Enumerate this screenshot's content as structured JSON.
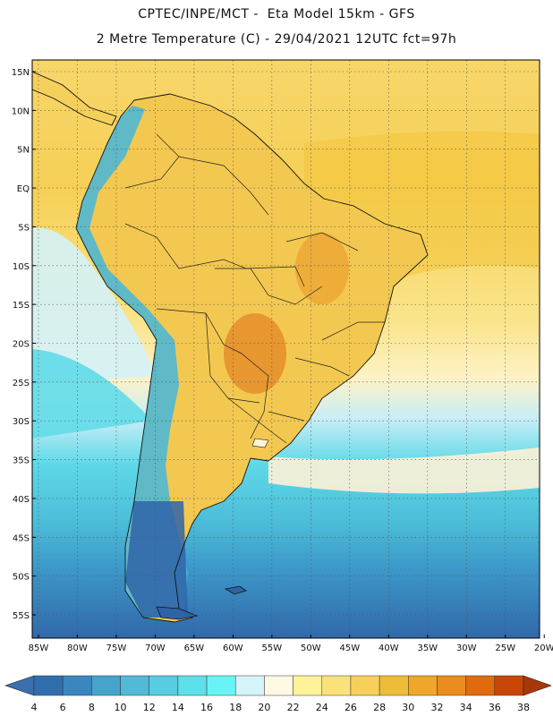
{
  "header": {
    "title_line1": "CPTEC/INPE/MCT -  Eta Model 15km - GFS",
    "title_line2": "2 Metre Temperature (C) - 29/04/2021 12UTC fct=97h"
  },
  "map": {
    "latitude_labels": [
      "15N",
      "10N",
      "5N",
      "EQ",
      "5S",
      "10S",
      "15S",
      "20S",
      "25S",
      "30S",
      "35S",
      "40S",
      "45S",
      "50S",
      "55S"
    ],
    "longitude_labels": [
      "85W",
      "80W",
      "75W",
      "70W",
      "65W",
      "60W",
      "55W",
      "50W",
      "45W",
      "40W",
      "35W",
      "30W",
      "25W",
      "20W"
    ],
    "lat_range": [
      -58,
      16.5
    ],
    "lon_range": [
      -85.8,
      -20.6
    ]
  },
  "legend": {
    "labels": [
      "4",
      "6",
      "8",
      "10",
      "12",
      "14",
      "16",
      "18",
      "20",
      "22",
      "24",
      "26",
      "28",
      "30",
      "32",
      "34",
      "36",
      "38"
    ],
    "colors": [
      "#3a6fb0",
      "#2f6fad",
      "#3a86c0",
      "#46a3cc",
      "#52bad6",
      "#58cce0",
      "#5ee0ea",
      "#68f4f4",
      "#d4f4fa",
      "#fff8e4",
      "#fff39a",
      "#fae27a",
      "#f6d05a",
      "#eebc38",
      "#f0a62a",
      "#ea8c1e",
      "#e06a0e",
      "#c84608",
      "#a8380a"
    ]
  }
}
